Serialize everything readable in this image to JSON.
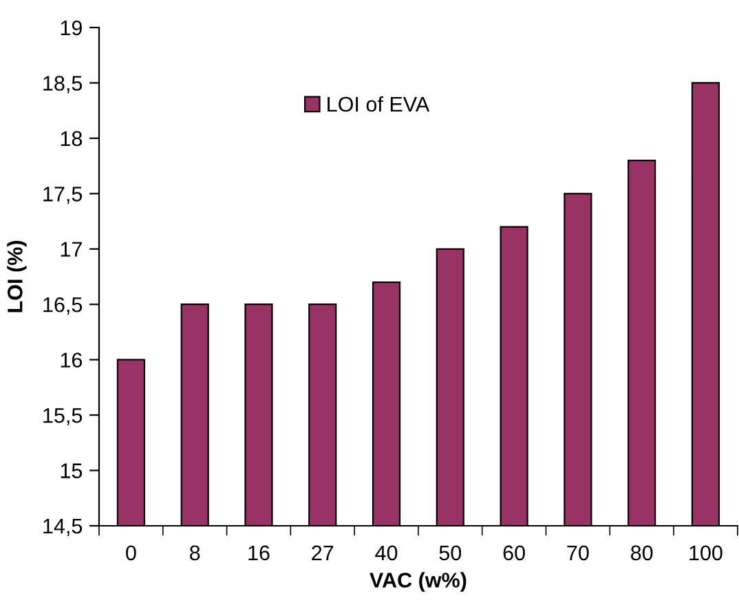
{
  "chart_data": {
    "type": "bar",
    "xlabel": "VAC (w%)",
    "ylabel": "LOI (%)",
    "categories": [
      "0",
      "8",
      "16",
      "27",
      "40",
      "50",
      "60",
      "70",
      "80",
      "100"
    ],
    "series": [
      {
        "name": "LOI of EVA",
        "color": "#993366",
        "values": [
          16,
          16.5,
          16.5,
          16.5,
          16.7,
          17,
          17.2,
          17.5,
          17.8,
          18.5
        ]
      }
    ],
    "ylim": [
      14.5,
      19
    ],
    "yticks": [
      {
        "value": 14.5,
        "label": "14,5"
      },
      15,
      {
        "value": 15.5,
        "label": "15,5"
      },
      16,
      {
        "value": 16.5,
        "label": "16,5"
      },
      17,
      {
        "value": 17.5,
        "label": "17,5"
      },
      18,
      {
        "value": 18.5,
        "label": "18,5"
      },
      19
    ],
    "grid": false,
    "legend": "top"
  }
}
